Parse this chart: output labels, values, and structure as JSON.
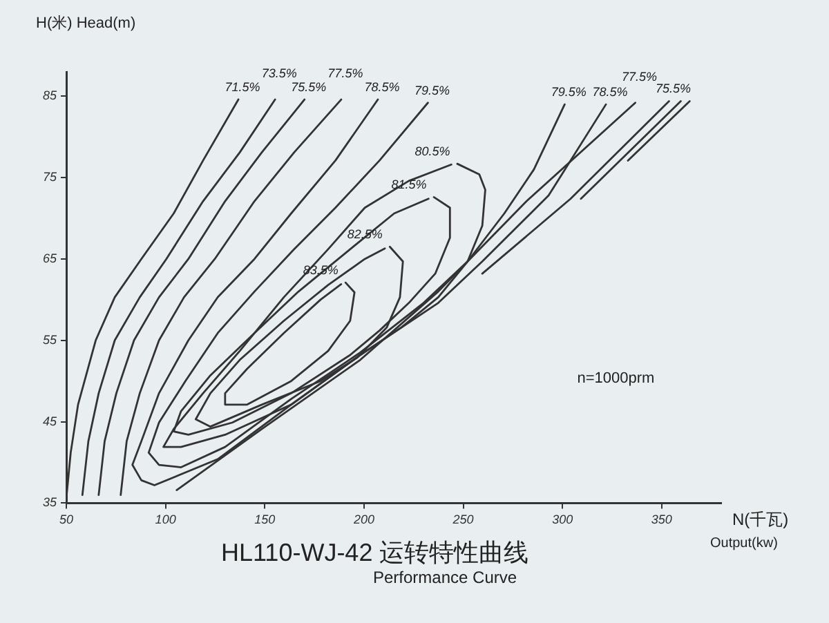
{
  "chart_data": {
    "type": "line",
    "title": "HL110-WJ-42 运转特性曲线",
    "subtitle": "Performance Curve",
    "xlabel": "N(千瓦)\nOutput(kw)",
    "ylabel": "H(米) Head(m)",
    "annotations": [
      "n=1000prm"
    ],
    "xlim": [
      50,
      380
    ],
    "xticks": [
      50,
      100,
      150,
      200,
      250,
      300,
      350
    ],
    "ylim": [
      35,
      88
    ],
    "yticks": [
      35,
      45,
      55,
      65,
      75,
      85
    ],
    "legend": false,
    "marker": "none",
    "series": [
      {
        "name": "71.5%",
        "color": "#333333",
        "x": [
          50,
          52.2,
          55.9,
          64.8,
          74.4,
          87.8,
          104.1,
          118.9,
          136.7
        ],
        "values": [
          35.6,
          41.2,
          47.1,
          55,
          60.3,
          65,
          70.6,
          77.1,
          84.6
        ]
      },
      {
        "name": "73.5%",
        "color": "#333333",
        "x": [
          58.1,
          61.1,
          66.3,
          74.4,
          87,
          100.4,
          118.9,
          137.4,
          155.2
        ],
        "values": [
          36,
          42.6,
          48.5,
          55,
          60.3,
          65,
          72.1,
          78.1,
          84.6
        ]
      },
      {
        "name": "75.5%",
        "color": "#333333",
        "x": [
          66.3,
          69.3,
          75.2,
          84.1,
          96.7,
          111.5,
          130,
          148.5,
          170
        ],
        "values": [
          36,
          42.6,
          48.5,
          55,
          60.3,
          65,
          72.1,
          78.1,
          84.6
        ]
      },
      {
        "name": "77.5%",
        "color": "#333333",
        "x": [
          77.4,
          80.4,
          87,
          96.7,
          109.3,
          124.8,
          144.8,
          164.8,
          188.5
        ],
        "values": [
          36,
          42.6,
          48.5,
          55,
          60.3,
          65,
          72.1,
          78.1,
          84.6
        ]
      },
      {
        "name": "78.5%",
        "color": "#333333",
        "x": [
          207,
          185.6,
          163.3,
          144.8,
          126.3,
          111.5,
          96.7,
          87.8,
          83.3,
          87.8,
          94.4,
          126.3,
          163.3,
          198.1,
          237.4,
          259.6,
          293,
          321.9
        ],
        "values": [
          84.6,
          77.1,
          70.6,
          65,
          60.3,
          55,
          48.5,
          42.6,
          39.7,
          37.8,
          37.2,
          40.4,
          47.1,
          53.2,
          59.6,
          64.7,
          72.8,
          84
        ]
      },
      {
        "name": "79.5%",
        "color": "#333333",
        "x": [
          232.2,
          207.8,
          185.6,
          164.8,
          144.8,
          126.3,
          110,
          96.7,
          91.5,
          96.7,
          107.8,
          130,
          163.3,
          198.1,
          230,
          252.2,
          270.7,
          285.6,
          301.1
        ],
        "values": [
          84.2,
          77.1,
          71.3,
          66.2,
          61,
          55.9,
          50,
          44.9,
          41.2,
          39.7,
          39.4,
          41.9,
          47.8,
          53.5,
          59.6,
          64.7,
          70.6,
          76,
          84
        ]
      },
      {
        "name": "80.5%",
        "color": "#333333",
        "x": [
          247,
          258.1,
          261.1,
          259.6,
          252.2,
          237.4,
          218.9,
          198.1,
          163.3,
          130,
          107.8,
          98.9,
          104.1,
          118.9,
          137.4,
          159.6,
          181.9,
          200.4,
          222.6,
          244
        ],
        "values": [
          76.7,
          75.4,
          73.5,
          69.1,
          64.7,
          60.3,
          56.6,
          53.2,
          47.1,
          43.4,
          41.9,
          41.9,
          44.1,
          48.5,
          53.7,
          60.3,
          66.2,
          71.3,
          74.6,
          76.6
        ]
      },
      {
        "name": "81.5%",
        "color": "#333333",
        "x": [
          235.2,
          243.3,
          243.3,
          235.9,
          222.6,
          207.8,
          193,
          163.3,
          133.7,
          111.5,
          104.1,
          107.8,
          122.6,
          144.8,
          167,
          193,
          215.2,
          232.5
        ],
        "values": [
          72.6,
          71.3,
          67.6,
          63.2,
          59.6,
          56.2,
          53.2,
          48.5,
          44.9,
          43.4,
          43.8,
          46.3,
          50.7,
          55.9,
          61,
          66.2,
          70.6,
          72.4
        ]
      },
      {
        "name": "82.5%",
        "color": "#333333",
        "x": [
          213,
          219.6,
          218.1,
          211.5,
          196.7,
          178.1,
          148.5,
          122.6,
          115.2,
          122.6,
          137.4,
          159.6,
          181.9,
          200.4,
          210.5
        ],
        "values": [
          66.5,
          64.7,
          60.3,
          56.6,
          52.9,
          50,
          47.1,
          44.4,
          45.3,
          48.5,
          52.6,
          57.4,
          61.8,
          65,
          66.3
        ]
      },
      {
        "name": "83.5%",
        "color": "#333333",
        "x": [
          190.7,
          195.2,
          193,
          181.9,
          163.3,
          141.1,
          130,
          130,
          141.1,
          159.6,
          178.1,
          188.5
        ],
        "values": [
          62.1,
          60.9,
          57.4,
          53.7,
          50,
          47.1,
          47.1,
          48.5,
          51.5,
          55.9,
          60,
          61.9
        ]
      },
      {
        "name": "77.5%",
        "color": "#333333",
        "x": [
          105.6,
          148.5,
          198.1,
          237.4,
          281.9,
          336.7
        ],
        "values": [
          36.6,
          44.1,
          52.6,
          61,
          72.1,
          84.2
        ]
      },
      {
        "name": "75.5%",
        "color": "#333333",
        "x": [
          259.6,
          304.1,
          353.7
        ],
        "values": [
          63.2,
          72.4,
          84.4
        ]
      },
      {
        "color": "#333333",
        "x": [
          309.3,
          359.6
        ],
        "values": [
          72.4,
          84.4
        ]
      },
      {
        "color": "#333333",
        "x": [
          333,
          364.1
        ],
        "values": [
          77.1,
          84.4
        ]
      }
    ]
  }
}
